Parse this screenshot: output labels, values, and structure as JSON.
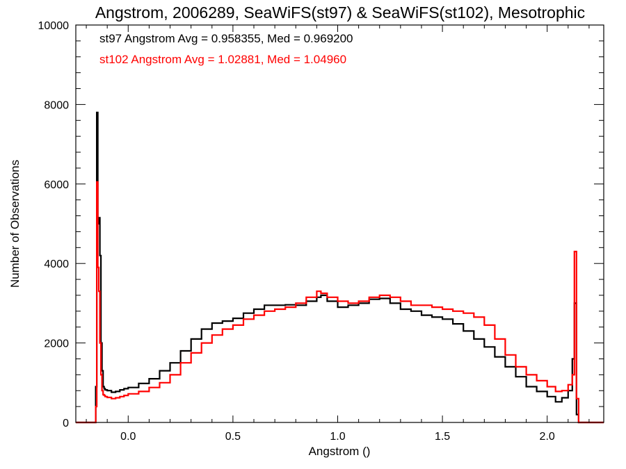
{
  "chart_data": {
    "type": "histogram",
    "title": "Angstrom, 2006289, SeaWiFS(st97) & SeaWiFS(st102), Mesotrophic",
    "xlabel": "Angstrom ()",
    "ylabel": "Number of Observations",
    "xlim": [
      -0.25,
      2.27
    ],
    "ylim": [
      0,
      10000
    ],
    "x_ticks": [
      0.0,
      0.5,
      1.0,
      1.5,
      2.0
    ],
    "x_tick_labels": [
      "0.0",
      "0.5",
      "1.0",
      "1.5",
      "2.0"
    ],
    "y_ticks": [
      0,
      2000,
      4000,
      6000,
      8000,
      10000
    ],
    "y_tick_labels": [
      "0",
      "2000",
      "4000",
      "6000",
      "8000",
      "10000"
    ],
    "grid": false,
    "annotations": [
      {
        "text": "st97 Angstrom Avg = 0.958355, Med = 0.969200",
        "color": "#000000"
      },
      {
        "text": "st102 Angstrom Avg = 1.02881, Med = 1.04960",
        "color": "#ff0000"
      }
    ],
    "series": [
      {
        "color": "#000000",
        "x": [
          -0.25,
          -0.16,
          -0.155,
          -0.15,
          -0.145,
          -0.14,
          -0.135,
          -0.13,
          -0.125,
          -0.12,
          -0.115,
          -0.11,
          -0.1,
          -0.08,
          -0.06,
          -0.04,
          -0.02,
          0.0,
          0.05,
          0.1,
          0.15,
          0.2,
          0.25,
          0.3,
          0.35,
          0.4,
          0.45,
          0.5,
          0.55,
          0.6,
          0.65,
          0.7,
          0.75,
          0.8,
          0.85,
          0.9,
          0.92,
          0.95,
          1.0,
          1.05,
          1.1,
          1.15,
          1.2,
          1.25,
          1.3,
          1.35,
          1.4,
          1.45,
          1.5,
          1.55,
          1.6,
          1.65,
          1.7,
          1.75,
          1.8,
          1.85,
          1.9,
          1.95,
          2.0,
          2.04,
          2.07,
          2.1,
          2.12,
          2.13,
          2.14,
          2.15,
          2.27
        ],
        "y": [
          0,
          0,
          900,
          7800,
          5000,
          5150,
          4200,
          2000,
          1300,
          900,
          850,
          820,
          800,
          760,
          780,
          820,
          850,
          880,
          980,
          1100,
          1300,
          1500,
          1800,
          2100,
          2350,
          2500,
          2550,
          2620,
          2750,
          2850,
          2950,
          2950,
          2960,
          2950,
          3050,
          3150,
          3200,
          3050,
          2900,
          2950,
          3000,
          3100,
          3120,
          3000,
          2850,
          2800,
          2700,
          2650,
          2600,
          2480,
          2300,
          2100,
          1900,
          1650,
          1400,
          1150,
          900,
          780,
          650,
          520,
          620,
          800,
          1600,
          3000,
          200,
          0,
          0
        ]
      },
      {
        "color": "#ff0000",
        "x": [
          -0.25,
          -0.16,
          -0.155,
          -0.15,
          -0.145,
          -0.14,
          -0.135,
          -0.13,
          -0.125,
          -0.12,
          -0.115,
          -0.11,
          -0.1,
          -0.08,
          -0.06,
          -0.04,
          -0.02,
          0.0,
          0.05,
          0.1,
          0.15,
          0.2,
          0.25,
          0.3,
          0.35,
          0.4,
          0.45,
          0.5,
          0.55,
          0.6,
          0.65,
          0.7,
          0.75,
          0.8,
          0.85,
          0.9,
          0.92,
          0.95,
          1.0,
          1.05,
          1.1,
          1.15,
          1.2,
          1.25,
          1.3,
          1.35,
          1.4,
          1.45,
          1.5,
          1.55,
          1.6,
          1.65,
          1.7,
          1.75,
          1.8,
          1.85,
          1.9,
          1.95,
          2.0,
          2.04,
          2.07,
          2.1,
          2.12,
          2.13,
          2.14,
          2.15,
          2.27
        ],
        "y": [
          0,
          0,
          400,
          6050,
          3900,
          3300,
          2000,
          1200,
          800,
          700,
          680,
          650,
          630,
          600,
          620,
          650,
          680,
          720,
          780,
          880,
          1000,
          1200,
          1500,
          1750,
          2000,
          2200,
          2350,
          2450,
          2600,
          2700,
          2800,
          2850,
          2900,
          3000,
          3150,
          3300,
          3250,
          3150,
          3050,
          3000,
          3050,
          3150,
          3200,
          3150,
          3050,
          2950,
          2950,
          2900,
          2850,
          2800,
          2750,
          2650,
          2450,
          2100,
          1700,
          1400,
          1200,
          1050,
          900,
          780,
          800,
          950,
          1200,
          4300,
          600,
          0,
          0
        ]
      }
    ]
  }
}
